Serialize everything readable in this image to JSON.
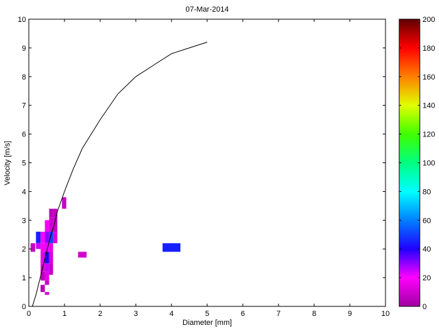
{
  "chart_data": {
    "type": "heatmap",
    "title": "07-Mar-2014",
    "xlabel": "Diameter [mm]",
    "ylabel": "Velocity [m/s]",
    "xlim": [
      0,
      10
    ],
    "ylim": [
      0,
      10
    ],
    "x_ticks": [
      "0",
      "1",
      "2",
      "3",
      "4",
      "5",
      "6",
      "7",
      "8",
      "9",
      "10"
    ],
    "y_ticks": [
      "0",
      "1",
      "2",
      "3",
      "4",
      "5",
      "6",
      "7",
      "8",
      "9",
      "10"
    ],
    "grid": false,
    "fall_velocity_curve": {
      "x": [
        0.1,
        0.2,
        0.3,
        0.4,
        0.5,
        0.6,
        0.7,
        0.8,
        0.9,
        1.0,
        1.25,
        1.5,
        2.0,
        2.5,
        3.0,
        3.5,
        4.0,
        4.5,
        5.0
      ],
      "y": [
        0.0,
        0.4,
        0.9,
        1.4,
        1.9,
        2.4,
        2.8,
        3.3,
        3.65,
        4.0,
        4.8,
        5.5,
        6.5,
        7.4,
        8.0,
        8.4,
        8.8,
        9.0,
        9.2
      ]
    },
    "cells": [
      {
        "x0": 0.05,
        "x1": 0.18,
        "y0": 1.9,
        "y1": 2.2,
        "v": 8
      },
      {
        "x0": 0.2,
        "x1": 0.33,
        "y0": 2.2,
        "y1": 2.6,
        "v": 45
      },
      {
        "x0": 0.2,
        "x1": 0.33,
        "y0": 2.0,
        "y1": 2.2,
        "v": 25
      },
      {
        "x0": 0.33,
        "x1": 0.45,
        "y0": 2.2,
        "y1": 2.6,
        "v": 20
      },
      {
        "x0": 0.33,
        "x1": 0.45,
        "y0": 1.9,
        "y1": 2.2,
        "v": 18
      },
      {
        "x0": 0.33,
        "x1": 0.45,
        "y0": 1.5,
        "y1": 1.9,
        "v": 15
      },
      {
        "x0": 0.33,
        "x1": 0.45,
        "y0": 1.2,
        "y1": 1.5,
        "v": 12
      },
      {
        "x0": 0.33,
        "x1": 0.45,
        "y0": 0.9,
        "y1": 1.2,
        "v": 6
      },
      {
        "x0": 0.33,
        "x1": 0.45,
        "y0": 0.5,
        "y1": 0.75,
        "v": 5
      },
      {
        "x0": 0.45,
        "x1": 0.57,
        "y0": 2.6,
        "y1": 3.0,
        "v": 18
      },
      {
        "x0": 0.45,
        "x1": 0.57,
        "y0": 2.2,
        "y1": 2.6,
        "v": 30
      },
      {
        "x0": 0.45,
        "x1": 0.57,
        "y0": 1.9,
        "y1": 2.2,
        "v": 22
      },
      {
        "x0": 0.45,
        "x1": 0.57,
        "y0": 1.5,
        "y1": 1.9,
        "v": 40
      },
      {
        "x0": 0.45,
        "x1": 0.57,
        "y0": 1.2,
        "y1": 1.5,
        "v": 25
      },
      {
        "x0": 0.45,
        "x1": 0.57,
        "y0": 0.9,
        "y1": 1.2,
        "v": 15
      },
      {
        "x0": 0.45,
        "x1": 0.57,
        "y0": 0.75,
        "y1": 0.9,
        "v": 8
      },
      {
        "x0": 0.45,
        "x1": 0.57,
        "y0": 0.4,
        "y1": 0.5,
        "v": 12
      },
      {
        "x0": 0.57,
        "x1": 0.68,
        "y0": 3.1,
        "y1": 3.4,
        "v": 6
      },
      {
        "x0": 0.57,
        "x1": 0.68,
        "y0": 2.6,
        "y1": 3.1,
        "v": 10
      },
      {
        "x0": 0.57,
        "x1": 0.68,
        "y0": 2.2,
        "y1": 2.6,
        "v": 50
      },
      {
        "x0": 0.57,
        "x1": 0.68,
        "y0": 1.9,
        "y1": 2.2,
        "v": 15
      },
      {
        "x0": 0.57,
        "x1": 0.68,
        "y0": 1.5,
        "y1": 1.9,
        "v": 12
      },
      {
        "x0": 0.57,
        "x1": 0.68,
        "y0": 1.1,
        "y1": 1.5,
        "v": 8
      },
      {
        "x0": 0.68,
        "x1": 0.8,
        "y0": 3.1,
        "y1": 3.4,
        "v": 6
      },
      {
        "x0": 0.68,
        "x1": 0.8,
        "y0": 2.6,
        "y1": 3.1,
        "v": 7
      },
      {
        "x0": 0.68,
        "x1": 0.8,
        "y0": 2.2,
        "y1": 2.6,
        "v": 12
      },
      {
        "x0": 0.93,
        "x1": 1.05,
        "y0": 3.4,
        "y1": 3.8,
        "v": 8
      },
      {
        "x0": 1.38,
        "x1": 1.62,
        "y0": 1.7,
        "y1": 1.9,
        "v": 10
      },
      {
        "x0": 3.75,
        "x1": 4.25,
        "y0": 1.9,
        "y1": 2.2,
        "v": 45
      }
    ],
    "colorbar": {
      "range": [
        0,
        200
      ],
      "ticks": [
        "0",
        "20",
        "40",
        "60",
        "80",
        "100",
        "120",
        "140",
        "160",
        "180",
        "200"
      ],
      "colormap": "hsv-reversed"
    }
  }
}
